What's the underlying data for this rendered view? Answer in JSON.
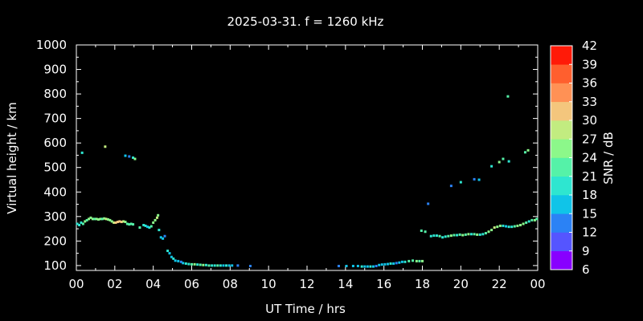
{
  "chart_data": {
    "type": "scatter",
    "title": "2025-03-31. f = 1260 kHz",
    "xlabel": "UT Time / hrs",
    "ylabel": "Virtual height / km",
    "colorbar_label": "SNR / dB",
    "xlim": [
      0,
      24
    ],
    "ylim": [
      80,
      1000
    ],
    "x_ticks": [
      "00",
      "02",
      "04",
      "06",
      "08",
      "10",
      "12",
      "14",
      "16",
      "18",
      "20",
      "22",
      "00"
    ],
    "y_ticks": [
      "100",
      "200",
      "300",
      "400",
      "500",
      "600",
      "700",
      "800",
      "900",
      "1000"
    ],
    "colorbar": {
      "min": 6,
      "max": 42,
      "ticks": [
        "6",
        "9",
        "12",
        "15",
        "18",
        "21",
        "24",
        "27",
        "30",
        "33",
        "36",
        "39",
        "42"
      ],
      "colors": [
        "#8800ff",
        "#5555ff",
        "#2b82f5",
        "#10c4e8",
        "#2ee6d0",
        "#55f2a8",
        "#8cf88a",
        "#c2ec80",
        "#f4c67d",
        "#ff9155",
        "#ff5f2e",
        "#ff1a08"
      ]
    },
    "grid": false,
    "points": [
      [
        0.05,
        270,
        20
      ],
      [
        0.15,
        265,
        18
      ],
      [
        0.25,
        275,
        20
      ],
      [
        0.35,
        270,
        22
      ],
      [
        0.45,
        280,
        24
      ],
      [
        0.55,
        285,
        22
      ],
      [
        0.65,
        290,
        25
      ],
      [
        0.75,
        295,
        26
      ],
      [
        0.85,
        290,
        24
      ],
      [
        0.95,
        290,
        22
      ],
      [
        1.05,
        290,
        25
      ],
      [
        1.15,
        288,
        24
      ],
      [
        1.25,
        290,
        26
      ],
      [
        1.35,
        290,
        23
      ],
      [
        1.45,
        292,
        25
      ],
      [
        1.55,
        290,
        28
      ],
      [
        1.65,
        288,
        26
      ],
      [
        1.75,
        285,
        24
      ],
      [
        1.85,
        280,
        26
      ],
      [
        1.95,
        275,
        28
      ],
      [
        2.05,
        275,
        30
      ],
      [
        2.15,
        278,
        32
      ],
      [
        2.25,
        280,
        30
      ],
      [
        2.35,
        278,
        31
      ],
      [
        2.45,
        280,
        29
      ],
      [
        2.55,
        278,
        26
      ],
      [
        2.65,
        270,
        22
      ],
      [
        2.75,
        268,
        21
      ],
      [
        2.85,
        270,
        23
      ],
      [
        2.95,
        268,
        22
      ],
      [
        0.3,
        560,
        18
      ],
      [
        1.5,
        585,
        28
      ],
      [
        2.55,
        548,
        16
      ],
      [
        2.75,
        545,
        14
      ],
      [
        2.95,
        540,
        20
      ],
      [
        3.05,
        535,
        25
      ],
      [
        3.3,
        255,
        22
      ],
      [
        3.5,
        265,
        20
      ],
      [
        3.6,
        262,
        18
      ],
      [
        3.7,
        258,
        16
      ],
      [
        3.8,
        255,
        20
      ],
      [
        3.9,
        260,
        22
      ],
      [
        4.0,
        275,
        24
      ],
      [
        4.1,
        285,
        26
      ],
      [
        4.2,
        295,
        27
      ],
      [
        4.25,
        305,
        26
      ],
      [
        4.3,
        245,
        20
      ],
      [
        4.4,
        215,
        16
      ],
      [
        4.5,
        210,
        15
      ],
      [
        4.6,
        220,
        14
      ],
      [
        4.75,
        160,
        18
      ],
      [
        4.85,
        150,
        16
      ],
      [
        4.95,
        135,
        17
      ],
      [
        5.05,
        128,
        18
      ],
      [
        5.15,
        120,
        15
      ],
      [
        5.3,
        118,
        16
      ],
      [
        5.45,
        115,
        14
      ],
      [
        5.55,
        110,
        17
      ],
      [
        5.7,
        108,
        20
      ],
      [
        5.85,
        106,
        18
      ],
      [
        6.0,
        105,
        22
      ],
      [
        6.15,
        105,
        24
      ],
      [
        6.3,
        104,
        20
      ],
      [
        6.45,
        103,
        22
      ],
      [
        6.6,
        102,
        24
      ],
      [
        6.75,
        102,
        20
      ],
      [
        6.9,
        100,
        22
      ],
      [
        7.05,
        100,
        18
      ],
      [
        7.2,
        100,
        20
      ],
      [
        7.35,
        100,
        22
      ],
      [
        7.5,
        100,
        18
      ],
      [
        7.65,
        100,
        16
      ],
      [
        7.8,
        100,
        18
      ],
      [
        7.95,
        100,
        15
      ],
      [
        8.1,
        100,
        16
      ],
      [
        8.4,
        100,
        14
      ],
      [
        9.05,
        98,
        12
      ],
      [
        13.65,
        98,
        14
      ],
      [
        14.05,
        98,
        15
      ],
      [
        14.4,
        98,
        16
      ],
      [
        14.65,
        98,
        17
      ],
      [
        14.85,
        96,
        18
      ],
      [
        15.0,
        96,
        15
      ],
      [
        15.15,
        96,
        17
      ],
      [
        15.3,
        96,
        18
      ],
      [
        15.45,
        96,
        16
      ],
      [
        15.6,
        98,
        14
      ],
      [
        15.75,
        102,
        15
      ],
      [
        15.9,
        104,
        16
      ],
      [
        16.05,
        105,
        15
      ],
      [
        16.2,
        106,
        17
      ],
      [
        16.35,
        108,
        18
      ],
      [
        16.5,
        108,
        16
      ],
      [
        16.65,
        110,
        14
      ],
      [
        16.8,
        112,
        15
      ],
      [
        16.95,
        115,
        17
      ],
      [
        17.1,
        115,
        20
      ],
      [
        17.3,
        118,
        22
      ],
      [
        17.5,
        120,
        22
      ],
      [
        17.7,
        118,
        24
      ],
      [
        17.85,
        118,
        22
      ],
      [
        18.0,
        118,
        24
      ],
      [
        17.95,
        242,
        22
      ],
      [
        18.15,
        238,
        22
      ],
      [
        18.3,
        352,
        14
      ],
      [
        18.45,
        220,
        20
      ],
      [
        18.6,
        222,
        18
      ],
      [
        18.75,
        222,
        20
      ],
      [
        18.9,
        220,
        22
      ],
      [
        19.05,
        215,
        18
      ],
      [
        19.2,
        218,
        20
      ],
      [
        19.35,
        220,
        22
      ],
      [
        19.5,
        222,
        24
      ],
      [
        19.65,
        224,
        22
      ],
      [
        19.8,
        224,
        20
      ],
      [
        19.95,
        226,
        22
      ],
      [
        20.1,
        224,
        24
      ],
      [
        20.25,
        226,
        22
      ],
      [
        20.4,
        228,
        24
      ],
      [
        20.55,
        228,
        20
      ],
      [
        20.7,
        228,
        22
      ],
      [
        20.85,
        226,
        24
      ],
      [
        21.0,
        226,
        20
      ],
      [
        21.15,
        228,
        18
      ],
      [
        21.3,
        232,
        22
      ],
      [
        21.45,
        238,
        24
      ],
      [
        21.6,
        245,
        26
      ],
      [
        21.75,
        255,
        28
      ],
      [
        21.9,
        258,
        26
      ],
      [
        22.05,
        262,
        24
      ],
      [
        22.2,
        262,
        20
      ],
      [
        22.35,
        260,
        16
      ],
      [
        22.5,
        258,
        18
      ],
      [
        22.65,
        258,
        20
      ],
      [
        22.8,
        260,
        22
      ],
      [
        22.95,
        262,
        24
      ],
      [
        23.1,
        265,
        26
      ],
      [
        23.25,
        270,
        24
      ],
      [
        23.4,
        275,
        22
      ],
      [
        23.55,
        280,
        20
      ],
      [
        23.7,
        285,
        22
      ],
      [
        23.85,
        285,
        24
      ],
      [
        23.95,
        290,
        22
      ],
      [
        19.5,
        425,
        14
      ],
      [
        20.0,
        440,
        20
      ],
      [
        20.7,
        452,
        14
      ],
      [
        20.95,
        450,
        16
      ],
      [
        21.6,
        505,
        20
      ],
      [
        22.0,
        522,
        24
      ],
      [
        22.2,
        535,
        22
      ],
      [
        22.5,
        525,
        20
      ],
      [
        22.45,
        790,
        22
      ],
      [
        23.35,
        562,
        22
      ],
      [
        23.5,
        570,
        24
      ]
    ]
  }
}
